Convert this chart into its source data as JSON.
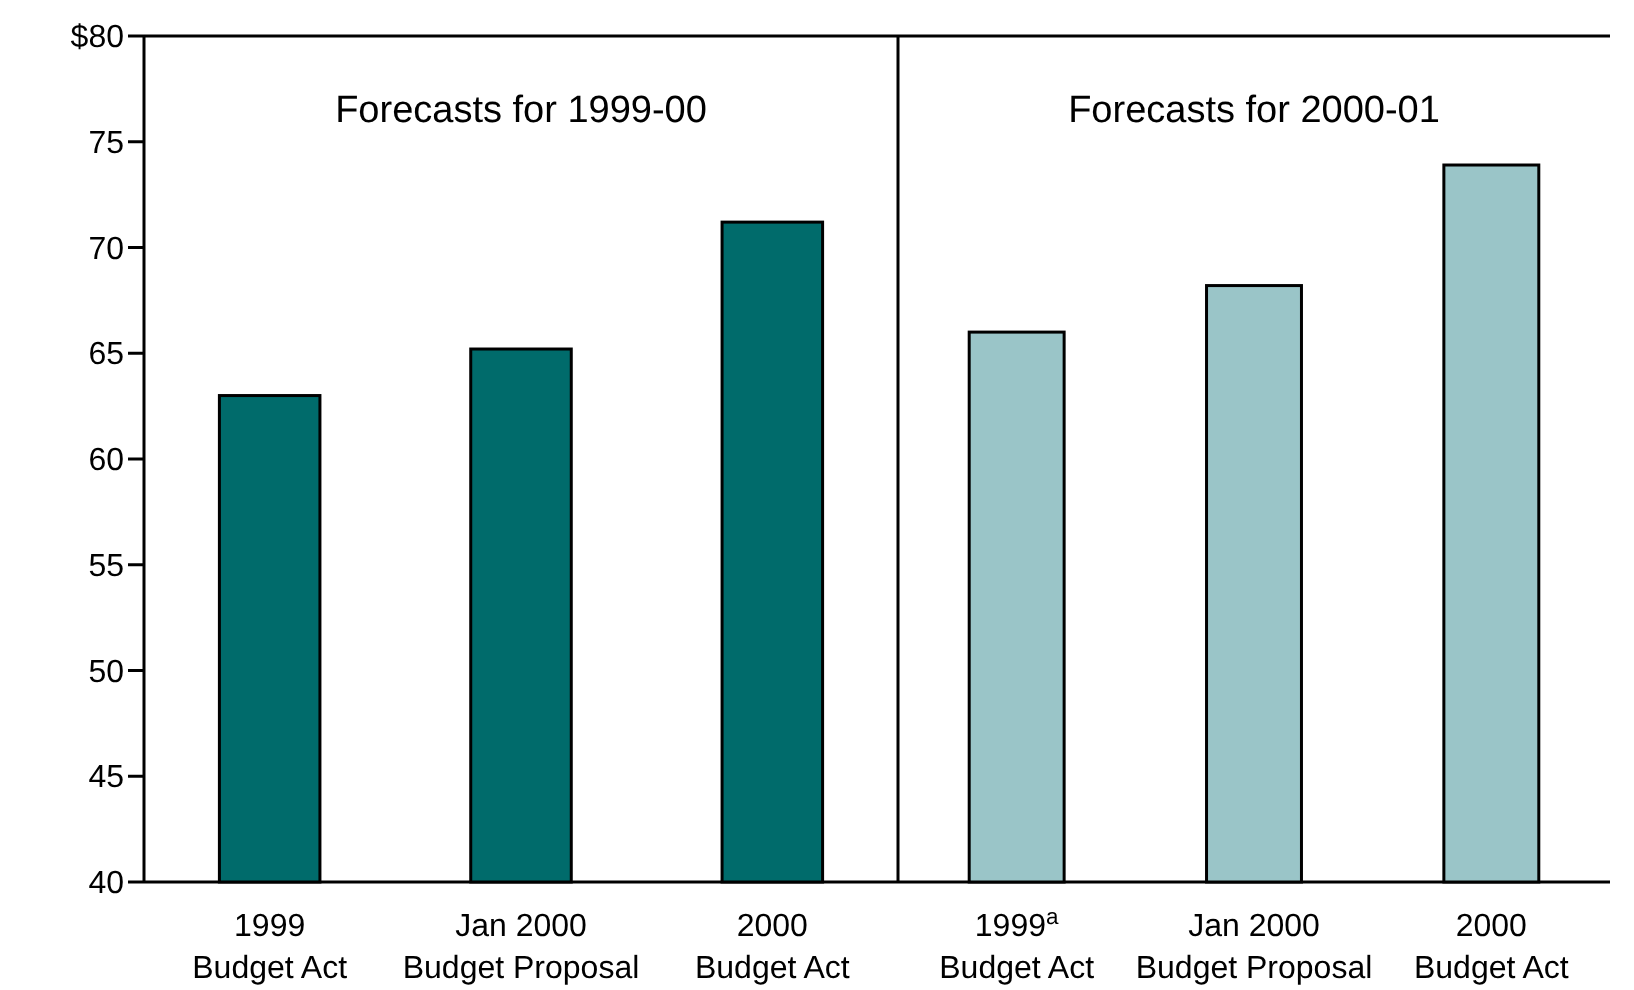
{
  "chart_data": [
    {
      "type": "bar",
      "title": "Forecasts for 1999-00",
      "categories": [
        "1999\nBudget Act",
        "Jan 2000\nBudget Proposal",
        "2000\nBudget Act"
      ],
      "values": [
        63,
        65.2,
        71.2
      ],
      "color": "#006b6b",
      "ylim": [
        40,
        80
      ],
      "yticks": [
        {
          "value": 80,
          "label": "$80"
        },
        75,
        70,
        65,
        60,
        55,
        50,
        45,
        40
      ]
    },
    {
      "type": "bar",
      "title": "Forecasts for 2000-01",
      "categories": [
        "1999$^{a}$\nBudget Act",
        "Jan 2000\nBudget Proposal",
        "2000\nBudget Act"
      ],
      "values": [
        66,
        68.2,
        73.9
      ],
      "color": "#9ac5c8",
      "ylim": [
        40,
        80
      ],
      "tick_labels": "x"
    }
  ]
}
